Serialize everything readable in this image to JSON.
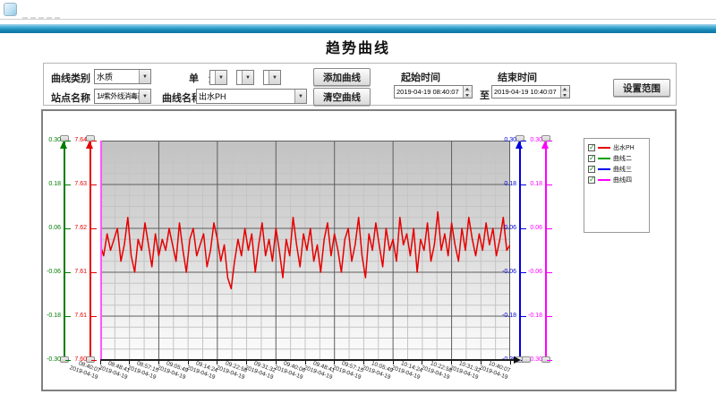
{
  "window": {
    "title": "趋势曲线"
  },
  "toolbar": {
    "curve_type_label": "曲线类别",
    "curve_type_value": "水质",
    "unit_label": "单　元",
    "station_label": "站点名称",
    "station_value": "1#紫外线消毒渠",
    "curve_name_label": "曲线名称",
    "curve_name_value": "出水PH",
    "add_curve_button": "添加曲线",
    "clear_curve_button": "清空曲线",
    "start_time_label": "起始时间",
    "start_time_value": "2019-04-19 08:40:07",
    "to_label": "至",
    "end_time_label": "结束时间",
    "end_time_value": "2019-04-19 10:40:07",
    "set_range_button": "设置范围"
  },
  "chart_data": {
    "type": "line",
    "title": "趋势曲线",
    "grid": true,
    "legend_position": "top-right",
    "plot_background": [
      "#c2c2c2",
      "#fdfdfd"
    ],
    "x_axis": {
      "date": "2019-04-19",
      "tick_times": [
        "08:40:07",
        "08:48:41",
        "08:57:15",
        "09:05:49",
        "09:14:24",
        "09:22:58",
        "09:31:32",
        "09:40:06",
        "09:48:41",
        "09:57:15",
        "10:05:49",
        "10:14:24",
        "10:22:58",
        "10:31:32",
        "10:40:07"
      ]
    },
    "y_axes": [
      {
        "name": "curve2-axis",
        "color": "#007d00",
        "min": -0.3,
        "max": 0.3,
        "tick_labels": [
          "0.30",
          "0.18",
          "0.06",
          "-0.06",
          "-0.18",
          "-0.30"
        ]
      },
      {
        "name": "ph-axis",
        "color": "#e60000",
        "min": 7.6,
        "max": 7.64,
        "tick_labels": [
          "7.64",
          "7.63",
          "7.62",
          "7.61",
          "7.61",
          "7.60"
        ]
      },
      {
        "name": "curve3-axis",
        "color": "#0000dd",
        "min": -0.3,
        "max": 0.3,
        "tick_labels": [
          "0.30",
          "0.18",
          "0.06",
          "-0.06",
          "-0.18",
          "-0.30"
        ]
      },
      {
        "name": "curve4-axis",
        "color": "#ff00ff",
        "min": -0.3,
        "max": 0.3,
        "tick_labels": [
          "0.30",
          "0.18",
          "0.06",
          "-0.06",
          "-0.18",
          "-0.30"
        ]
      }
    ],
    "series": [
      {
        "name": "出水PH",
        "color": "#e60000",
        "axis": "ph-axis",
        "checked": true,
        "values": [
          7.621,
          7.619,
          7.623,
          7.62,
          7.622,
          7.624,
          7.618,
          7.621,
          7.626,
          7.619,
          7.616,
          7.622,
          7.62,
          7.625,
          7.621,
          7.617,
          7.623,
          7.619,
          7.622,
          7.62,
          7.624,
          7.621,
          7.618,
          7.625,
          7.62,
          7.616,
          7.622,
          7.624,
          7.619,
          7.621,
          7.623,
          7.617,
          7.62,
          7.625,
          7.622,
          7.618,
          7.621,
          7.615,
          7.613,
          7.618,
          7.622,
          7.619,
          7.624,
          7.62,
          7.623,
          7.616,
          7.621,
          7.625,
          7.619,
          7.622,
          7.618,
          7.624,
          7.62,
          7.615,
          7.622,
          7.619,
          7.626,
          7.621,
          7.617,
          7.623,
          7.62,
          7.624,
          7.618,
          7.621,
          7.616,
          7.622,
          7.625,
          7.619,
          7.623,
          7.62,
          7.616,
          7.622,
          7.624,
          7.618,
          7.621,
          7.626,
          7.619,
          7.615,
          7.623,
          7.62,
          7.625,
          7.621,
          7.617,
          7.624,
          7.62,
          7.622,
          7.618,
          7.626,
          7.621,
          7.623,
          7.619,
          7.624,
          7.616,
          7.622,
          7.62,
          7.625,
          7.618,
          7.621,
          7.627,
          7.62,
          7.623,
          7.619,
          7.625,
          7.621,
          7.618,
          7.624,
          7.62,
          7.626,
          7.622,
          7.619,
          7.623,
          7.62,
          7.625,
          7.621,
          7.624,
          7.619,
          7.622,
          7.626,
          7.62,
          7.621
        ]
      },
      {
        "name": "曲线二",
        "color": "#00a000",
        "axis": "curve2-axis",
        "checked": true,
        "values": []
      },
      {
        "name": "曲线三",
        "color": "#0000ee",
        "axis": "curve3-axis",
        "checked": true,
        "values": []
      },
      {
        "name": "曲线四",
        "color": "#ff00ff",
        "axis": "curve4-axis",
        "checked": true,
        "values": []
      }
    ]
  }
}
